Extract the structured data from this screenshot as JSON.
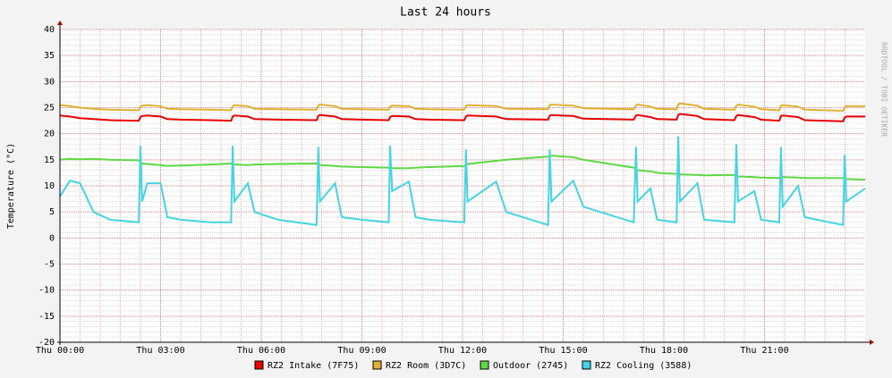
{
  "chart_data": {
    "type": "line",
    "title": "Last 24 hours",
    "y_label": "Temperature (°C)",
    "watermark": "RRDTOOL / TOBI OETIKER",
    "x": [
      0,
      0.3,
      0.6,
      1,
      1.5,
      2.35,
      2.4,
      2.45,
      2.6,
      3.0,
      3.2,
      3.6,
      4.5,
      5.1,
      5.15,
      5.2,
      5.6,
      5.8,
      6.5,
      7.65,
      7.7,
      7.75,
      8.2,
      8.4,
      9,
      9.8,
      9.84,
      9.9,
      10.4,
      10.6,
      11,
      12.05,
      12.1,
      12.15,
      13.0,
      13.3,
      14.55,
      14.6,
      14.65,
      15.3,
      15.6,
      17.1,
      17.17,
      17.22,
      17.6,
      17.8,
      18.38,
      18.43,
      18.48,
      19,
      19.2,
      20.1,
      20.16,
      20.21,
      20.7,
      20.9,
      21.44,
      21.49,
      21.54,
      22.0,
      22.2,
      23.34,
      23.39,
      23.44,
      24
    ],
    "series": [
      {
        "name": "RZ2 Intake (7F75)",
        "color": "#e80000",
        "values": [
          23.5,
          23.3,
          23,
          22.8,
          22.6,
          22.5,
          23.2,
          23.4,
          23.5,
          23.3,
          22.8,
          22.7,
          22.6,
          22.5,
          23.3,
          23.5,
          23.3,
          22.8,
          22.7,
          22.6,
          23.4,
          23.6,
          23.3,
          22.8,
          22.7,
          22.6,
          23.2,
          23.4,
          23.3,
          22.8,
          22.7,
          22.6,
          23.3,
          23.5,
          23.3,
          22.8,
          22.7,
          23.5,
          23.6,
          23.4,
          22.9,
          22.7,
          23.5,
          23.6,
          23.2,
          22.8,
          22.7,
          23.6,
          23.8,
          23.4,
          22.8,
          22.6,
          23.4,
          23.6,
          23.2,
          22.7,
          22.5,
          23.4,
          23.5,
          23.2,
          22.6,
          22.4,
          23.1,
          23.3,
          23.3
        ]
      },
      {
        "name": "RZ2 Room (3D7C)",
        "color": "#e0b030",
        "values": [
          25.5,
          25.3,
          25,
          24.8,
          24.6,
          24.5,
          25.2,
          25.4,
          25.5,
          25.3,
          24.8,
          24.7,
          24.6,
          24.5,
          25.3,
          25.5,
          25.3,
          24.8,
          24.7,
          24.6,
          25.4,
          25.6,
          25.3,
          24.8,
          24.7,
          24.6,
          25.2,
          25.4,
          25.3,
          24.8,
          24.7,
          24.6,
          25.3,
          25.5,
          25.3,
          24.8,
          24.7,
          25.5,
          25.6,
          25.4,
          24.9,
          24.7,
          25.5,
          25.6,
          25.2,
          24.8,
          24.7,
          25.6,
          25.8,
          25.4,
          24.8,
          24.6,
          25.4,
          25.6,
          25.2,
          24.7,
          24.5,
          25.4,
          25.5,
          25.2,
          24.6,
          24.4,
          25.1,
          25.3,
          25.3
        ]
      },
      {
        "name": "Outdoor (2745)",
        "color": "#5ed844",
        "values": [
          15,
          15.2,
          15.1,
          15.2,
          15,
          14.9,
          14.5,
          14.3,
          14.2,
          14,
          13.8,
          13.9,
          14.1,
          14.3,
          14.2,
          14.1,
          14,
          14.1,
          14.2,
          14.3,
          14.2,
          14,
          13.8,
          13.7,
          13.6,
          13.5,
          13.5,
          13.4,
          13.4,
          13.5,
          13.6,
          13.8,
          14,
          14.2,
          14.8,
          15,
          15.6,
          15.7,
          15.8,
          15.5,
          15,
          13.5,
          13.3,
          13,
          12.8,
          12.5,
          12.3,
          12.3,
          12.2,
          12.1,
          12,
          12.1,
          11.9,
          11.8,
          11.7,
          11.6,
          11.5,
          11.6,
          11.7,
          11.6,
          11.5,
          11.5,
          11.4,
          11.3,
          11.2
        ]
      },
      {
        "name": "RZ2 Cooling (3588)",
        "color": "#44d4e4",
        "values": [
          8,
          11,
          10.5,
          5,
          3.5,
          3,
          17.7,
          7,
          10.5,
          10.5,
          4,
          3.5,
          3,
          3,
          17.7,
          7,
          10.5,
          5,
          3.5,
          2.5,
          17.5,
          7,
          10.5,
          4,
          3.5,
          3,
          17.7,
          9,
          10.8,
          4,
          3.5,
          3,
          17,
          7,
          10.8,
          5,
          2.5,
          17,
          7,
          11,
          6,
          3,
          17.5,
          7,
          9.5,
          3.5,
          3,
          19.5,
          7,
          10.5,
          3.5,
          3,
          18,
          7,
          9,
          3.5,
          3,
          17.5,
          6,
          10,
          4,
          2.5,
          16,
          7,
          9.5
        ]
      }
    ],
    "xlim": [
      0,
      24
    ],
    "xticks": [
      {
        "value": 0,
        "label": "Thu 00:00"
      },
      {
        "value": 3,
        "label": "Thu 03:00"
      },
      {
        "value": 6,
        "label": "Thu 06:00"
      },
      {
        "value": 9,
        "label": "Thu 09:00"
      },
      {
        "value": 12,
        "label": "Thu 12:00"
      },
      {
        "value": 15,
        "label": "Thu 15:00"
      },
      {
        "value": 18,
        "label": "Thu 18:00"
      },
      {
        "value": 21,
        "label": "Thu 21:00"
      }
    ],
    "ylim": [
      -20,
      40
    ],
    "yticks": [
      -20,
      -15,
      -10,
      -5,
      0,
      5,
      10,
      15,
      20,
      25,
      30,
      35,
      40
    ],
    "grid": true
  }
}
